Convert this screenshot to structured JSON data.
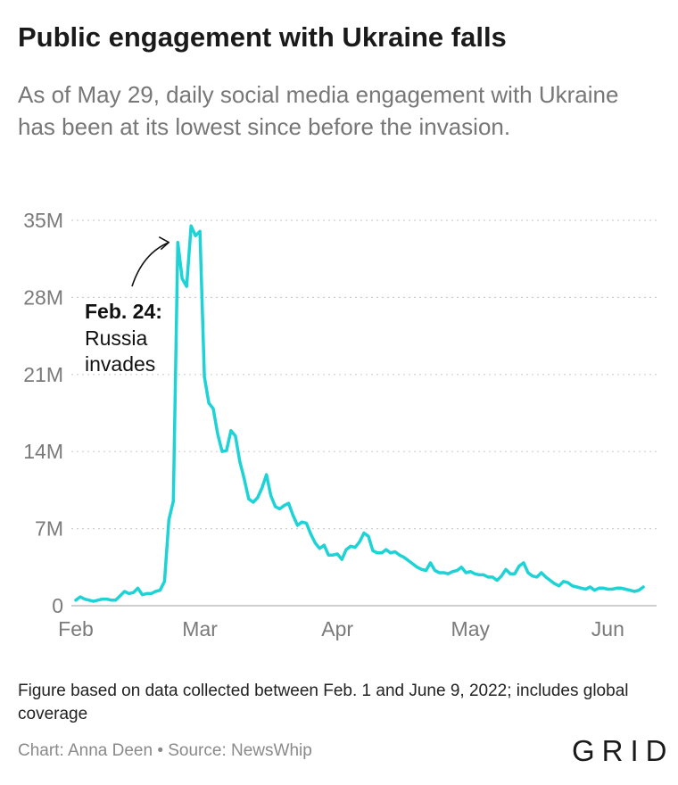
{
  "header": {
    "title": "Public engagement with Ukraine falls",
    "subtitle": "As of May 29, daily social media engagement with Ukraine has been at its lowest since before the invasion."
  },
  "chart_data": {
    "type": "line",
    "title": "Public engagement with Ukraine falls",
    "xlabel": "",
    "ylabel": "",
    "x_range": [
      "2022-01-31",
      "2022-06-12"
    ],
    "ylim": [
      0,
      35000000
    ],
    "y_ticks": [
      {
        "value": 0,
        "label": "0"
      },
      {
        "value": 7000000,
        "label": "7M"
      },
      {
        "value": 14000000,
        "label": "14M"
      },
      {
        "value": 21000000,
        "label": "21M"
      },
      {
        "value": 28000000,
        "label": "28M"
      },
      {
        "value": 35000000,
        "label": "35M"
      }
    ],
    "x_ticks": [
      {
        "value": "2022-02-01",
        "label": "Feb"
      },
      {
        "value": "2022-03-01",
        "label": "Mar"
      },
      {
        "value": "2022-04-01",
        "label": "Apr"
      },
      {
        "value": "2022-05-01",
        "label": "May"
      },
      {
        "value": "2022-06-01",
        "label": "Jun"
      }
    ],
    "grid": "horizontal dotted",
    "color": "#1dd3d6",
    "annotation": {
      "date": "2022-02-24",
      "value": 33000000,
      "head": "Feb. 24:",
      "lines": [
        "Russia",
        "invades"
      ]
    },
    "series": [
      {
        "points": [
          [
            "2022-02-01",
            0.5
          ],
          [
            "2022-02-02",
            0.8
          ],
          [
            "2022-02-03",
            0.6
          ],
          [
            "2022-02-04",
            0.5
          ],
          [
            "2022-02-05",
            0.4
          ],
          [
            "2022-02-06",
            0.5
          ],
          [
            "2022-02-07",
            0.6
          ],
          [
            "2022-02-08",
            0.6
          ],
          [
            "2022-02-09",
            0.5
          ],
          [
            "2022-02-10",
            0.5
          ],
          [
            "2022-02-11",
            0.9
          ],
          [
            "2022-02-12",
            1.3
          ],
          [
            "2022-02-13",
            1.1
          ],
          [
            "2022-02-14",
            1.2
          ],
          [
            "2022-02-15",
            1.6
          ],
          [
            "2022-02-16",
            1.0
          ],
          [
            "2022-02-17",
            1.1
          ],
          [
            "2022-02-18",
            1.1
          ],
          [
            "2022-02-19",
            1.3
          ],
          [
            "2022-02-20",
            1.4
          ],
          [
            "2022-02-21",
            2.2
          ],
          [
            "2022-02-22",
            7.8
          ],
          [
            "2022-02-23",
            9.5
          ],
          [
            "2022-02-24",
            33.0
          ],
          [
            "2022-02-25",
            29.7
          ],
          [
            "2022-02-26",
            29.0
          ],
          [
            "2022-02-27",
            34.5
          ],
          [
            "2022-02-28",
            33.6
          ],
          [
            "2022-03-01",
            34.0
          ],
          [
            "2022-03-02",
            20.8
          ],
          [
            "2022-03-03",
            18.4
          ],
          [
            "2022-03-04",
            17.9
          ],
          [
            "2022-03-05",
            15.6
          ],
          [
            "2022-03-06",
            14.0
          ],
          [
            "2022-03-07",
            14.1
          ],
          [
            "2022-03-08",
            15.9
          ],
          [
            "2022-03-09",
            15.4
          ],
          [
            "2022-03-10",
            13.1
          ],
          [
            "2022-03-11",
            11.5
          ],
          [
            "2022-03-12",
            9.7
          ],
          [
            "2022-03-13",
            9.4
          ],
          [
            "2022-03-14",
            9.8
          ],
          [
            "2022-03-15",
            10.7
          ],
          [
            "2022-03-16",
            11.9
          ],
          [
            "2022-03-17",
            10.0
          ],
          [
            "2022-03-18",
            9.0
          ],
          [
            "2022-03-19",
            8.8
          ],
          [
            "2022-03-20",
            9.1
          ],
          [
            "2022-03-21",
            9.3
          ],
          [
            "2022-03-22",
            8.2
          ],
          [
            "2022-03-23",
            7.3
          ],
          [
            "2022-03-24",
            7.6
          ],
          [
            "2022-03-25",
            7.5
          ],
          [
            "2022-03-26",
            6.5
          ],
          [
            "2022-03-27",
            5.7
          ],
          [
            "2022-03-28",
            5.2
          ],
          [
            "2022-03-29",
            5.5
          ],
          [
            "2022-03-30",
            4.6
          ],
          [
            "2022-03-31",
            4.6
          ],
          [
            "2022-04-01",
            4.7
          ],
          [
            "2022-04-02",
            4.2
          ],
          [
            "2022-04-03",
            5.1
          ],
          [
            "2022-04-04",
            5.4
          ],
          [
            "2022-04-05",
            5.3
          ],
          [
            "2022-04-06",
            5.8
          ],
          [
            "2022-04-07",
            6.6
          ],
          [
            "2022-04-08",
            6.3
          ],
          [
            "2022-04-09",
            5.0
          ],
          [
            "2022-04-10",
            4.8
          ],
          [
            "2022-04-11",
            4.8
          ],
          [
            "2022-04-12",
            5.1
          ],
          [
            "2022-04-13",
            4.8
          ],
          [
            "2022-04-14",
            4.9
          ],
          [
            "2022-04-15",
            4.6
          ],
          [
            "2022-04-16",
            4.4
          ],
          [
            "2022-04-17",
            4.1
          ],
          [
            "2022-04-18",
            3.8
          ],
          [
            "2022-04-19",
            3.5
          ],
          [
            "2022-04-20",
            3.3
          ],
          [
            "2022-04-21",
            3.2
          ],
          [
            "2022-04-22",
            3.9
          ],
          [
            "2022-04-23",
            3.2
          ],
          [
            "2022-04-24",
            3.0
          ],
          [
            "2022-04-25",
            3.0
          ],
          [
            "2022-04-26",
            2.9
          ],
          [
            "2022-04-27",
            3.1
          ],
          [
            "2022-04-28",
            3.2
          ],
          [
            "2022-04-29",
            3.5
          ],
          [
            "2022-04-30",
            3.0
          ],
          [
            "2022-05-01",
            3.1
          ],
          [
            "2022-05-02",
            2.9
          ],
          [
            "2022-05-03",
            2.8
          ],
          [
            "2022-05-04",
            2.8
          ],
          [
            "2022-05-05",
            2.6
          ],
          [
            "2022-05-06",
            2.6
          ],
          [
            "2022-05-07",
            2.3
          ],
          [
            "2022-05-08",
            2.7
          ],
          [
            "2022-05-09",
            3.3
          ],
          [
            "2022-05-10",
            2.9
          ],
          [
            "2022-05-11",
            2.9
          ],
          [
            "2022-05-12",
            3.6
          ],
          [
            "2022-05-13",
            3.9
          ],
          [
            "2022-05-14",
            3.0
          ],
          [
            "2022-05-15",
            2.7
          ],
          [
            "2022-05-16",
            2.6
          ],
          [
            "2022-05-17",
            3.0
          ],
          [
            "2022-05-18",
            2.6
          ],
          [
            "2022-05-19",
            2.3
          ],
          [
            "2022-05-20",
            2.0
          ],
          [
            "2022-05-21",
            1.8
          ],
          [
            "2022-05-22",
            2.2
          ],
          [
            "2022-05-23",
            2.1
          ],
          [
            "2022-05-24",
            1.8
          ],
          [
            "2022-05-25",
            1.7
          ],
          [
            "2022-05-26",
            1.6
          ],
          [
            "2022-05-27",
            1.5
          ],
          [
            "2022-05-28",
            1.7
          ],
          [
            "2022-05-29",
            1.4
          ],
          [
            "2022-05-30",
            1.6
          ],
          [
            "2022-05-31",
            1.6
          ],
          [
            "2022-06-01",
            1.5
          ],
          [
            "2022-06-02",
            1.5
          ],
          [
            "2022-06-03",
            1.6
          ],
          [
            "2022-06-04",
            1.6
          ],
          [
            "2022-06-05",
            1.5
          ],
          [
            "2022-06-06",
            1.4
          ],
          [
            "2022-06-07",
            1.3
          ],
          [
            "2022-06-08",
            1.4
          ],
          [
            "2022-06-09",
            1.7
          ]
        ],
        "value_unit": "M"
      }
    ]
  },
  "footer": {
    "note": "Figure based on data collected between Feb. 1 and June 9, 2022; includes global coverage",
    "credit": "Chart: Anna Deen • Source: NewsWhip",
    "logo": "GRID"
  }
}
